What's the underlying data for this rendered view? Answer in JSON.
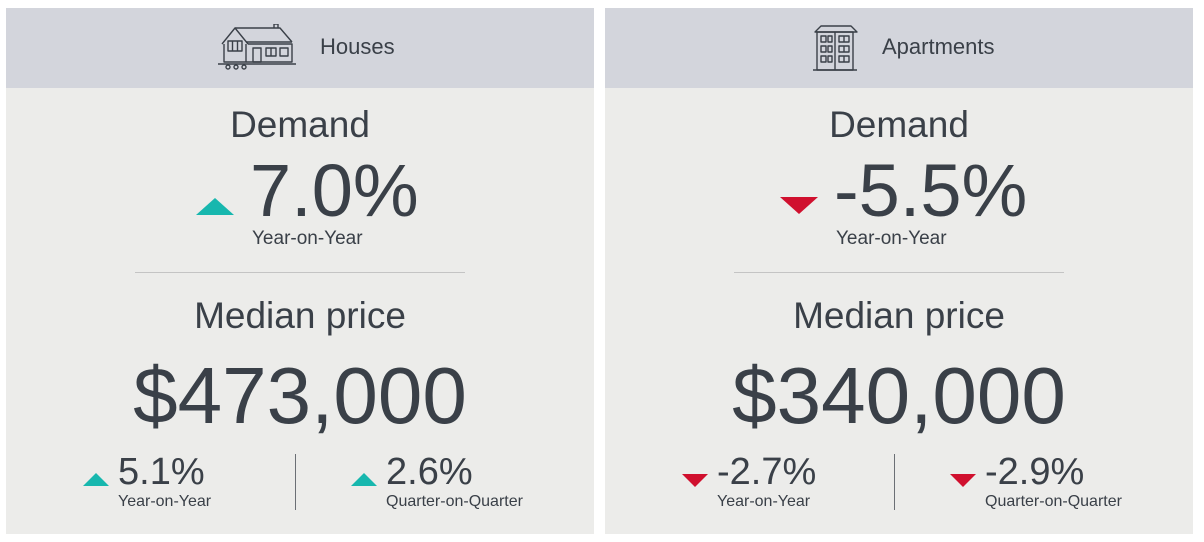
{
  "colors": {
    "up": "#17b7ae",
    "down": "#d0102e",
    "header_bg": "#d3d5dc",
    "card_bg": "#ececea",
    "text": "#3a4048"
  },
  "houses": {
    "title": "Houses",
    "icon": "house-icon",
    "demand": {
      "label": "Demand",
      "value": "7.0%",
      "trend": "up",
      "caption": "Year-on-Year"
    },
    "median": {
      "label": "Median price",
      "value": "$473,000",
      "yoy": {
        "value": "5.1%",
        "trend": "up",
        "caption": "Year-on-Year"
      },
      "qoq": {
        "value": "2.6%",
        "trend": "up",
        "caption": "Quarter-on-Quarter"
      }
    }
  },
  "apartments": {
    "title": "Apartments",
    "icon": "apartment-building-icon",
    "demand": {
      "label": "Demand",
      "value": "-5.5%",
      "trend": "down",
      "caption": "Year-on-Year"
    },
    "median": {
      "label": "Median price",
      "value": "$340,000",
      "yoy": {
        "value": "-2.7%",
        "trend": "down",
        "caption": "Year-on-Year"
      },
      "qoq": {
        "value": "-2.9%",
        "trend": "down",
        "caption": "Quarter-on-Quarter"
      }
    }
  }
}
